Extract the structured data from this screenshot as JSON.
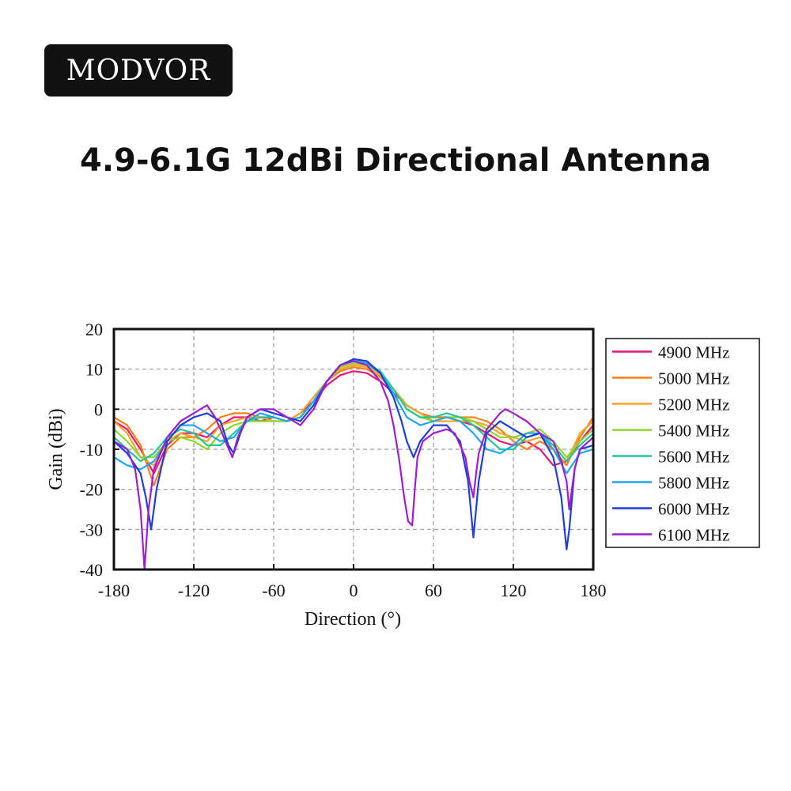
{
  "brand": {
    "logo_text": "MODVOR"
  },
  "headline": "4.9-6.1G 12dBi Directional Antenna",
  "chart_data": {
    "type": "line",
    "title": "",
    "xlabel": "Direction (°)",
    "ylabel": "Gain (dBi)",
    "xlim": [
      -180,
      180
    ],
    "ylim": [
      -40,
      20
    ],
    "xticks": [
      -180,
      -120,
      -60,
      0,
      60,
      120,
      180
    ],
    "yticks": [
      20,
      10,
      0,
      -10,
      -20,
      -30,
      -40
    ],
    "grid": true,
    "legend_position": "right",
    "series": [
      {
        "name": "4900 MHz",
        "color": "#e6167a",
        "x": [
          -180,
          -170,
          -160,
          -150,
          -140,
          -130,
          -120,
          -110,
          -100,
          -90,
          -80,
          -70,
          -60,
          -50,
          -40,
          -30,
          -20,
          -10,
          0,
          10,
          20,
          30,
          40,
          50,
          60,
          70,
          80,
          90,
          100,
          110,
          120,
          130,
          140,
          150,
          160,
          170,
          180
        ],
        "y": [
          -3,
          -5,
          -10,
          -16,
          -9,
          -6,
          -6,
          -7,
          -4,
          -2,
          -2,
          -3,
          -2,
          -3,
          -1,
          2,
          6,
          8.5,
          9.5,
          9,
          7,
          4,
          1,
          -1,
          -2,
          -2,
          -3,
          -4,
          -6,
          -8,
          -9,
          -8,
          -10,
          -14,
          -13,
          -8,
          -4
        ]
      },
      {
        "name": "5000 MHz",
        "color": "#ff7f17",
        "x": [
          -180,
          -170,
          -160,
          -150,
          -140,
          -130,
          -120,
          -110,
          -100,
          -90,
          -80,
          -70,
          -60,
          -50,
          -40,
          -30,
          -20,
          -10,
          0,
          10,
          20,
          30,
          40,
          50,
          60,
          70,
          80,
          90,
          100,
          110,
          120,
          130,
          140,
          150,
          160,
          170,
          180
        ],
        "y": [
          -2,
          -4,
          -9,
          -19,
          -10,
          -7,
          -7,
          -5,
          -2,
          -1,
          -1,
          -2,
          -2,
          -3,
          -1,
          3,
          7,
          9.5,
          10.5,
          10,
          8,
          5,
          1,
          -1,
          -2,
          -2,
          -2,
          -2,
          -3,
          -5,
          -8,
          -10,
          -8,
          -10,
          -14,
          -7,
          -2
        ]
      },
      {
        "name": "5200 MHz",
        "color": "#f5a623",
        "x": [
          -180,
          -170,
          -160,
          -150,
          -140,
          -130,
          -120,
          -110,
          -100,
          -90,
          -80,
          -70,
          -60,
          -50,
          -40,
          -30,
          -20,
          -10,
          0,
          10,
          20,
          30,
          40,
          50,
          60,
          70,
          80,
          90,
          100,
          110,
          120,
          130,
          140,
          150,
          160,
          170,
          180
        ],
        "y": [
          -3,
          -6,
          -12,
          -14,
          -8,
          -6,
          -7,
          -8,
          -4,
          -3,
          -2,
          -2,
          -3,
          -3,
          -1,
          3,
          7,
          10,
          11,
          10.5,
          8.5,
          5,
          1,
          -1,
          -3,
          -3,
          -3,
          -3,
          -4,
          -6,
          -7,
          -8,
          -7,
          -9,
          -13,
          -6,
          -3
        ]
      },
      {
        "name": "5400 MHz",
        "color": "#8fd626",
        "x": [
          -180,
          -170,
          -160,
          -150,
          -140,
          -130,
          -120,
          -110,
          -100,
          -90,
          -80,
          -70,
          -60,
          -50,
          -40,
          -30,
          -20,
          -10,
          0,
          10,
          20,
          30,
          40,
          50,
          60,
          70,
          80,
          90,
          100,
          110,
          120,
          130,
          140,
          150,
          160,
          170,
          180
        ],
        "y": [
          -5,
          -8,
          -12,
          -12,
          -8,
          -7,
          -8,
          -10,
          -6,
          -4,
          -3,
          -3,
          -3,
          -3,
          -2,
          2,
          7,
          10.5,
          11.5,
          11,
          9,
          5,
          0,
          -2,
          -3,
          -2,
          -2,
          -3,
          -5,
          -7,
          -7,
          -6,
          -5,
          -8,
          -12,
          -8,
          -5
        ]
      },
      {
        "name": "5600 MHz",
        "color": "#20c997",
        "x": [
          -180,
          -170,
          -160,
          -150,
          -140,
          -130,
          -120,
          -110,
          -100,
          -90,
          -80,
          -70,
          -60,
          -50,
          -40,
          -30,
          -20,
          -10,
          0,
          10,
          20,
          30,
          40,
          50,
          60,
          70,
          80,
          90,
          100,
          110,
          120,
          130,
          140,
          150,
          160,
          170,
          180
        ],
        "y": [
          -7,
          -10,
          -13,
          -11,
          -7,
          -5,
          -6,
          -9,
          -9,
          -6,
          -3,
          -2,
          -2,
          -3,
          -2,
          2,
          7,
          11,
          12,
          11.5,
          9.5,
          5,
          0,
          -2,
          -2,
          -1,
          -2,
          -4,
          -7,
          -10,
          -10,
          -7,
          -6,
          -9,
          -13,
          -9,
          -6
        ]
      },
      {
        "name": "5800 MHz",
        "color": "#1ea7f0",
        "x": [
          -180,
          -170,
          -160,
          -150,
          -140,
          -130,
          -120,
          -110,
          -100,
          -90,
          -80,
          -70,
          -60,
          -50,
          -40,
          -30,
          -20,
          -10,
          0,
          10,
          20,
          30,
          40,
          50,
          60,
          70,
          80,
          90,
          100,
          110,
          120,
          130,
          140,
          150,
          160,
          170,
          180
        ],
        "y": [
          -12,
          -14,
          -15,
          -13,
          -8,
          -4,
          -4,
          -6,
          -8,
          -7,
          -3,
          -1,
          -2,
          -3,
          -2,
          2,
          7,
          11,
          12,
          11.5,
          9,
          4,
          -2,
          -4,
          -3,
          -2,
          -3,
          -6,
          -10,
          -11,
          -9,
          -6,
          -6,
          -10,
          -16,
          -11,
          -10
        ]
      },
      {
        "name": "6000 MHz",
        "color": "#1f3ddb",
        "x": [
          -180,
          -170,
          -160,
          -156,
          -152,
          -148,
          -140,
          -130,
          -120,
          -110,
          -100,
          -94,
          -90,
          -85,
          -80,
          -70,
          -60,
          -50,
          -40,
          -30,
          -20,
          -10,
          0,
          10,
          20,
          30,
          36,
          40,
          45,
          50,
          60,
          70,
          80,
          86,
          90,
          94,
          100,
          110,
          120,
          130,
          140,
          150,
          156,
          160,
          162,
          166,
          170,
          180
        ],
        "y": [
          -8,
          -11,
          -16,
          -22,
          -30,
          -20,
          -8,
          -4,
          -2,
          -1,
          -3,
          -9,
          -11,
          -6,
          -2,
          0,
          -1,
          -2,
          -3,
          1,
          7,
          11,
          12.5,
          12,
          9,
          3,
          -3,
          -8,
          -12,
          -8,
          -4,
          -4,
          -8,
          -18,
          -32,
          -18,
          -6,
          -3,
          -5,
          -7,
          -6,
          -12,
          -22,
          -35,
          -30,
          -15,
          -10,
          -9
        ]
      },
      {
        "name": "6100 MHz",
        "color": "#9b1fd1",
        "x": [
          -180,
          -170,
          -164,
          -160,
          -157,
          -154,
          -150,
          -140,
          -130,
          -120,
          -115,
          -110,
          -104,
          -100,
          -95,
          -91,
          -87,
          -80,
          -70,
          -60,
          -50,
          -40,
          -30,
          -20,
          -10,
          0,
          10,
          20,
          26,
          30,
          34,
          38,
          41,
          44,
          46,
          48,
          52,
          60,
          70,
          76,
          80,
          84,
          87,
          90,
          92,
          94,
          100,
          110,
          114,
          120,
          130,
          140,
          150,
          156,
          160,
          162,
          166,
          170,
          180
        ],
        "y": [
          -8,
          -10,
          -15,
          -25,
          -40,
          -25,
          -15,
          -7,
          -3,
          -1,
          0,
          1,
          -2,
          -5,
          -9,
          -12,
          -7,
          -2,
          0,
          0,
          -2,
          -4,
          0,
          7,
          11,
          12,
          11,
          7,
          2,
          -4,
          -12,
          -22,
          -28,
          -29,
          -20,
          -12,
          -8,
          -6,
          -5,
          -6,
          -9,
          -12,
          -18,
          -22,
          -16,
          -11,
          -5,
          -1,
          0,
          -1,
          -3,
          -6,
          -8,
          -13,
          -18,
          -25,
          -15,
          -10,
          -7
        ]
      }
    ]
  }
}
